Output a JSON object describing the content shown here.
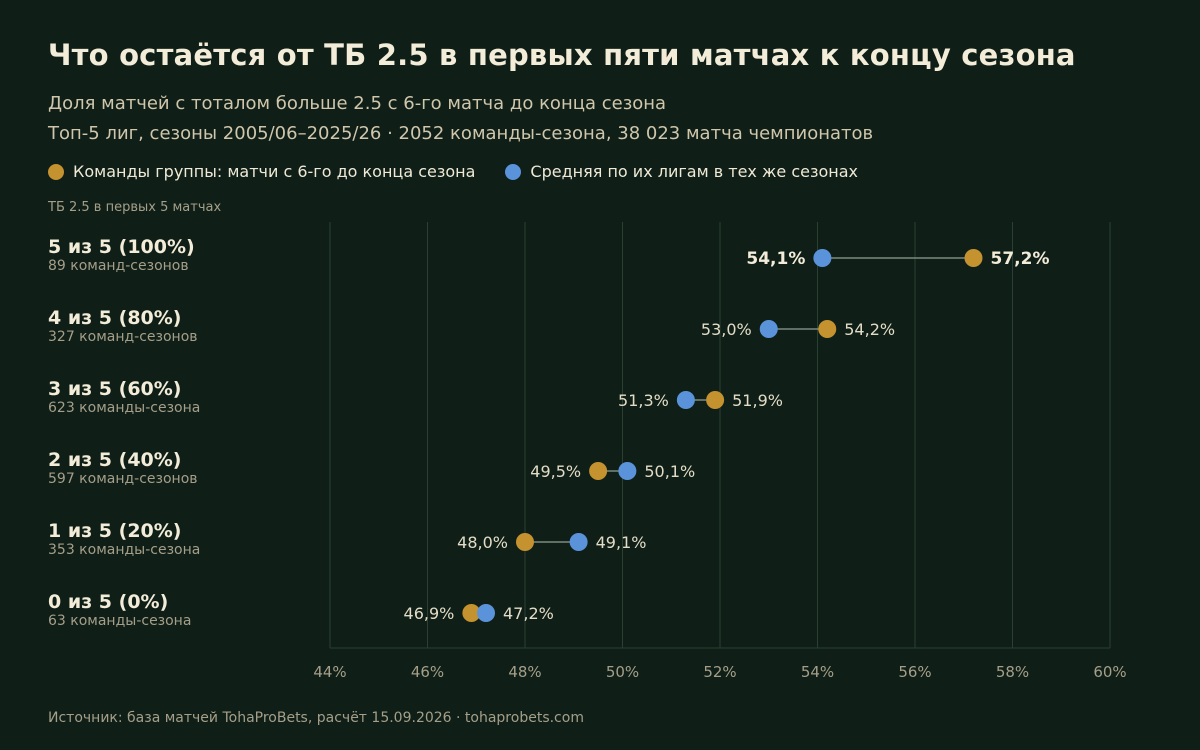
{
  "title": "Что остаётся от ТБ 2.5 в первых пяти матчах к концу сезона",
  "subtitle1": "Доля матчей с тоталом больше 2.5 с 6-го матча до конца сезона",
  "subtitle2": "Топ-5 лиг, сезоны 2005/06–2025/26 · 2052 команды-сезона, 38 023 матча чемпионатов",
  "legend": {
    "group": "Команды группы: матчи с 6-го до конца сезона",
    "league": "Средняя по их лигам в тех же сезонах"
  },
  "group_axis_label": "ТБ 2.5 в первых 5 матчах",
  "footer": "Источник: база матчей TohaProBets, расчёт 15.09.2026 · tohaprobets.com",
  "colors": {
    "group": "#c4922f",
    "league": "#5b93db",
    "background": "#0f1f17"
  },
  "chart_data": {
    "type": "dumbbell",
    "xlim": [
      44,
      60
    ],
    "x_ticks": [
      "44%",
      "46%",
      "48%",
      "50%",
      "52%",
      "54%",
      "56%",
      "58%",
      "60%"
    ],
    "x_tick_values": [
      44,
      46,
      48,
      50,
      52,
      54,
      56,
      58,
      60
    ],
    "grid": true,
    "legend_position": "top-left",
    "rows": [
      {
        "label": "5 из 5 (100%)",
        "sub": "89 команд-сезонов",
        "group": 57.2,
        "league": 54.1,
        "group_label": "57,2%",
        "league_label": "54,1%",
        "emphasis": true
      },
      {
        "label": "4 из 5 (80%)",
        "sub": "327 команд-сезонов",
        "group": 54.2,
        "league": 53.0,
        "group_label": "54,2%",
        "league_label": "53,0%",
        "emphasis": false
      },
      {
        "label": "3 из 5 (60%)",
        "sub": "623 команды-сезона",
        "group": 51.9,
        "league": 51.3,
        "group_label": "51,9%",
        "league_label": "51,3%",
        "emphasis": false
      },
      {
        "label": "2 из 5 (40%)",
        "sub": "597 команд-сезонов",
        "group": 49.5,
        "league": 50.1,
        "group_label": "49,5%",
        "league_label": "50,1%",
        "emphasis": false
      },
      {
        "label": "1 из 5 (20%)",
        "sub": "353 команды-сезона",
        "group": 48.0,
        "league": 49.1,
        "group_label": "48,0%",
        "league_label": "49,1%",
        "emphasis": false
      },
      {
        "label": "0 из 5 (0%)",
        "sub": "63 команды-сезона",
        "group": 46.9,
        "league": 47.2,
        "group_label": "46,9%",
        "league_label": "47,2%",
        "emphasis": false
      }
    ]
  }
}
